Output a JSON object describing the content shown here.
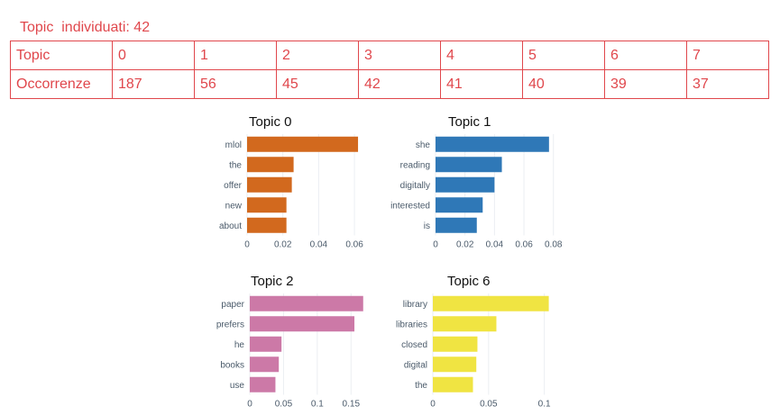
{
  "header": {
    "label": "Topic  individuati: 42"
  },
  "table": {
    "rows": [
      {
        "label": "Topic",
        "cells": [
          "0",
          "1",
          "2",
          "3",
          "4",
          "5",
          "6",
          "7"
        ]
      },
      {
        "label": "Occorrenze",
        "cells": [
          "187",
          "56",
          "45",
          "42",
          "41",
          "40",
          "39",
          "37"
        ]
      }
    ]
  },
  "chart_data": [
    {
      "type": "bar",
      "orientation": "horizontal",
      "title": "Topic 0",
      "categories": [
        "mlol",
        "the",
        "offer",
        "new",
        "about"
      ],
      "values": [
        0.062,
        0.026,
        0.025,
        0.022,
        0.022
      ],
      "xlim": [
        0,
        0.065
      ],
      "xticks": [
        0,
        0.02,
        0.04,
        0.06
      ],
      "xtick_labels": [
        "0",
        "0.02",
        "0.04",
        "0.06"
      ],
      "color": "#d2691e",
      "grid": true
    },
    {
      "type": "bar",
      "orientation": "horizontal",
      "title": "Topic 1",
      "categories": [
        "she",
        "reading",
        "digitally",
        "interested",
        "is"
      ],
      "values": [
        0.077,
        0.045,
        0.04,
        0.032,
        0.028
      ],
      "xlim": [
        0,
        0.082
      ],
      "xticks": [
        0,
        0.02,
        0.04,
        0.06,
        0.08
      ],
      "xtick_labels": [
        "0",
        "0.02",
        "0.04",
        "0.06",
        "0.08"
      ],
      "color": "#2f78b7",
      "grid": true
    },
    {
      "type": "bar",
      "orientation": "horizontal",
      "title": "Topic 2",
      "categories": [
        "paper",
        "prefers",
        "he",
        "books",
        "use"
      ],
      "values": [
        0.168,
        0.155,
        0.047,
        0.043,
        0.038
      ],
      "xlim": [
        0,
        0.175
      ],
      "xticks": [
        0,
        0.05,
        0.1,
        0.15
      ],
      "xtick_labels": [
        "0",
        "0.05",
        "0.1",
        "0.15"
      ],
      "color": "#cc79a7",
      "grid": true
    },
    {
      "type": "bar",
      "orientation": "horizontal",
      "title": "Topic 6",
      "categories": [
        "library",
        "libraries",
        "closed",
        "digital",
        "the"
      ],
      "values": [
        0.104,
        0.057,
        0.04,
        0.039,
        0.036
      ],
      "xlim": [
        0,
        0.11
      ],
      "xticks": [
        0,
        0.05,
        0.1
      ],
      "xtick_labels": [
        "0",
        "0.05",
        "0.1"
      ],
      "color": "#f0e442",
      "grid": true
    }
  ]
}
